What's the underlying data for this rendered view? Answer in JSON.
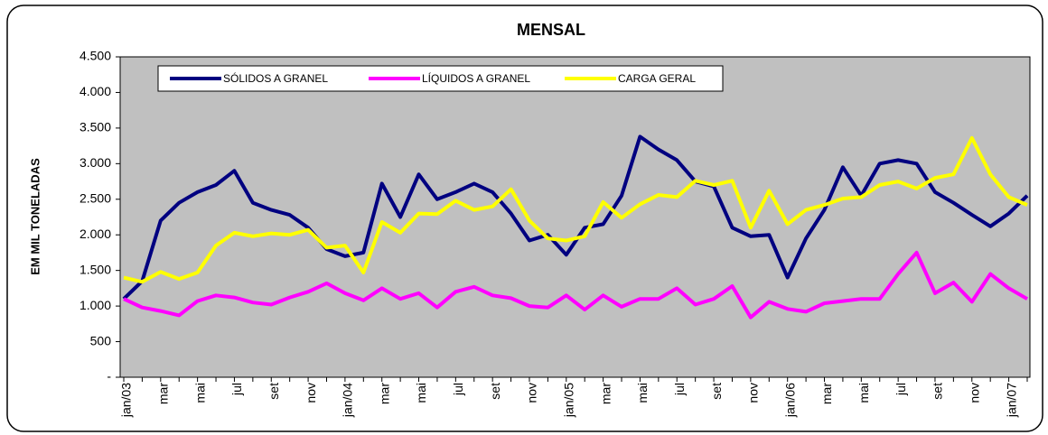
{
  "chart_data": {
    "type": "line",
    "title": "MENSAL",
    "y_label": "EM MIL TONELADAS",
    "categories": [
      "jan/03",
      null,
      "mar",
      null,
      "mai",
      null,
      "jul",
      null,
      "set",
      null,
      "nov",
      null,
      "jan/04",
      null,
      "mar",
      null,
      "mai",
      null,
      "jul",
      null,
      "set",
      null,
      "nov",
      null,
      "jan/05",
      null,
      "mar",
      null,
      "mai",
      null,
      "jul",
      null,
      "set",
      null,
      "nov",
      null,
      "jan/06",
      null,
      "mar",
      null,
      "mai",
      null,
      "jul",
      null,
      "set",
      null,
      "nov",
      null,
      "jan/07",
      null
    ],
    "series": [
      {
        "name": "SÓLIDOS A GRANEL",
        "color": "#000080",
        "values": [
          1100,
          1350,
          2200,
          2450,
          2600,
          2700,
          2900,
          2450,
          2350,
          2280,
          2100,
          1800,
          1700,
          1750,
          2720,
          2250,
          2850,
          2500,
          2600,
          2720,
          2600,
          2300,
          1920,
          2000,
          1720,
          2100,
          2150,
          2550,
          3380,
          3200,
          3050,
          2750,
          2680,
          2100,
          1980,
          2000,
          1400,
          1950,
          2350,
          2950,
          2550,
          3000,
          3050,
          3000,
          2600,
          2450,
          2280,
          2120,
          2300,
          2550
        ]
      },
      {
        "name": "LÍQUIDOS A GRANEL",
        "color": "#ff00ff",
        "values": [
          1100,
          980,
          930,
          870,
          1070,
          1150,
          1120,
          1050,
          1020,
          1120,
          1200,
          1320,
          1180,
          1080,
          1250,
          1100,
          1180,
          980,
          1200,
          1270,
          1150,
          1110,
          1000,
          980,
          1150,
          950,
          1150,
          990,
          1100,
          1100,
          1250,
          1020,
          1100,
          1280,
          840,
          1060,
          960,
          920,
          1040,
          1070,
          1100,
          1100,
          1450,
          1750,
          1180,
          1330,
          1060,
          1450,
          1250,
          1100
        ]
      },
      {
        "name": "CARGA GERAL",
        "color": "#ffff00",
        "values": [
          1400,
          1340,
          1480,
          1380,
          1470,
          1850,
          2030,
          1980,
          2020,
          2000,
          2070,
          1820,
          1850,
          1470,
          2180,
          2030,
          2300,
          2290,
          2480,
          2350,
          2400,
          2640,
          2200,
          1950,
          1920,
          1980,
          2460,
          2240,
          2430,
          2560,
          2530,
          2760,
          2700,
          2760,
          2100,
          2620,
          2150,
          2350,
          2420,
          2510,
          2530,
          2700,
          2750,
          2650,
          2800,
          2850,
          3360,
          2850,
          2530,
          2420
        ]
      }
    ],
    "ylim": [
      0,
      4500
    ],
    "yticks": [
      {
        "value": 0,
        "label": "-"
      },
      500,
      {
        "value": 1000,
        "label": "1.000"
      },
      {
        "value": 1500,
        "label": "1.500"
      },
      {
        "value": 2000,
        "label": "2.000"
      },
      {
        "value": 2500,
        "label": "2.500"
      },
      {
        "value": 3000,
        "label": "3.000"
      },
      {
        "value": 3500,
        "label": "3.500"
      },
      {
        "value": 4000,
        "label": "4.000"
      },
      {
        "value": 4500,
        "label": "4.500"
      }
    ],
    "plot_background": "#c0c0c0",
    "grid": false
  }
}
